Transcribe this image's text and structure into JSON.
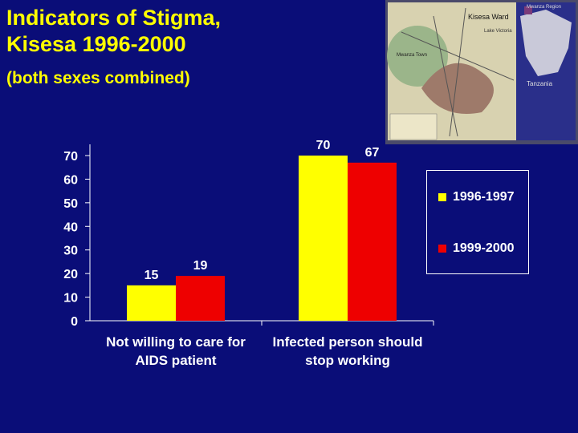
{
  "slide": {
    "title_line1": "Indicators of Stigma,",
    "title_line2": "Kisesa 1996-2000",
    "subtitle": "(both sexes combined)"
  },
  "map": {
    "ward_label": "Kisesa Ward",
    "region_label": "Mwanza Region",
    "country_label": "Tanzania",
    "town_label": "Mwanza Town",
    "lake_label": "Lake Victoria"
  },
  "colors": {
    "background": "#0a0d78",
    "title": "#ffff00",
    "series1": "#ffff00",
    "series2": "#ee0000",
    "text": "#ffffff"
  },
  "chart_data": {
    "type": "bar",
    "categories": [
      "Not willing to care for AIDS patient",
      "Infected person should stop working"
    ],
    "category_lines": [
      [
        "Not willing to care for",
        "AIDS patient"
      ],
      [
        "Infected person should",
        "stop working"
      ]
    ],
    "series": [
      {
        "name": "1996-1997",
        "values": [
          15,
          70
        ],
        "color": "#ffff00"
      },
      {
        "name": "1999-2000",
        "values": [
          19,
          67
        ],
        "color": "#ee0000"
      }
    ],
    "yticks": [
      0,
      10,
      20,
      30,
      40,
      50,
      60,
      70
    ],
    "ylim": [
      0,
      70
    ],
    "legend_position": "right",
    "grid": false
  }
}
